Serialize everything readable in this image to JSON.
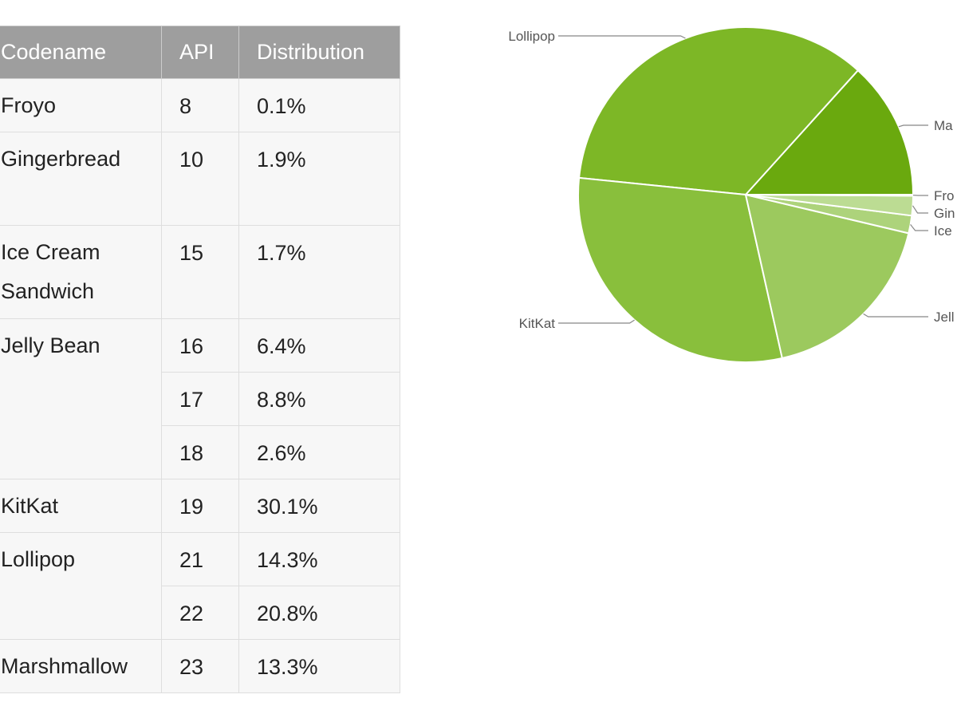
{
  "table": {
    "headers": [
      "Codename",
      "API",
      "Distribution"
    ],
    "groups": [
      {
        "codename": "Froyo",
        "rows": [
          {
            "api": "8",
            "pct": "0.1%"
          }
        ]
      },
      {
        "codename": "Gingerbread",
        "rows": [
          {
            "api": "10",
            "pct": "1.9%"
          }
        ]
      },
      {
        "codename": "Ice Cream Sandwich",
        "rows": [
          {
            "api": "15",
            "pct": "1.7%"
          }
        ]
      },
      {
        "codename": "Jelly Bean",
        "rows": [
          {
            "api": "16",
            "pct": "6.4%"
          },
          {
            "api": "17",
            "pct": "8.8%"
          },
          {
            "api": "18",
            "pct": "2.6%"
          }
        ]
      },
      {
        "codename": "KitKat",
        "rows": [
          {
            "api": "19",
            "pct": "30.1%"
          }
        ]
      },
      {
        "codename": "Lollipop",
        "rows": [
          {
            "api": "21",
            "pct": "14.3%"
          },
          {
            "api": "22",
            "pct": "20.8%"
          }
        ]
      },
      {
        "codename": "Marshmallow",
        "rows": [
          {
            "api": "23",
            "pct": "13.3%"
          }
        ]
      }
    ]
  },
  "chart_data": [
    {
      "type": "table",
      "columns": [
        "Codename",
        "API",
        "Distribution"
      ],
      "rows": [
        [
          "Froyo",
          "8",
          "0.1%"
        ],
        [
          "Gingerbread",
          "10",
          "1.9%"
        ],
        [
          "Ice Cream Sandwich",
          "15",
          "1.7%"
        ],
        [
          "Jelly Bean",
          "16",
          "6.4%"
        ],
        [
          "Jelly Bean",
          "17",
          "8.8%"
        ],
        [
          "Jelly Bean",
          "18",
          "2.6%"
        ],
        [
          "KitKat",
          "19",
          "30.1%"
        ],
        [
          "Lollipop",
          "21",
          "14.3%"
        ],
        [
          "Lollipop",
          "22",
          "20.8%"
        ],
        [
          "Marshmallow",
          "23",
          "13.3%"
        ]
      ]
    },
    {
      "type": "pie",
      "title": "",
      "start_angle_deg": 0,
      "direction": "counterclockwise",
      "slices": [
        {
          "label": "Marshmallow",
          "display_label": "Ma",
          "value": 13.3,
          "color": "#6aa90e"
        },
        {
          "label": "Lollipop",
          "display_label": "Lollipop",
          "value": 35.1,
          "color": "#7db726"
        },
        {
          "label": "KitKat",
          "display_label": "KitKat",
          "value": 30.1,
          "color": "#89bf3c"
        },
        {
          "label": "Jelly Bean",
          "display_label": "Jell",
          "value": 17.8,
          "color": "#9cc95e"
        },
        {
          "label": "Ice Cream Sandwich",
          "display_label": "Ice",
          "value": 1.7,
          "color": "#add37b"
        },
        {
          "label": "Gingerbread",
          "display_label": "Gin",
          "value": 1.9,
          "color": "#bcdc93"
        },
        {
          "label": "Froyo",
          "display_label": "Fro",
          "value": 0.1,
          "color": "#cce5ab"
        }
      ],
      "legend": "callout labels"
    }
  ]
}
